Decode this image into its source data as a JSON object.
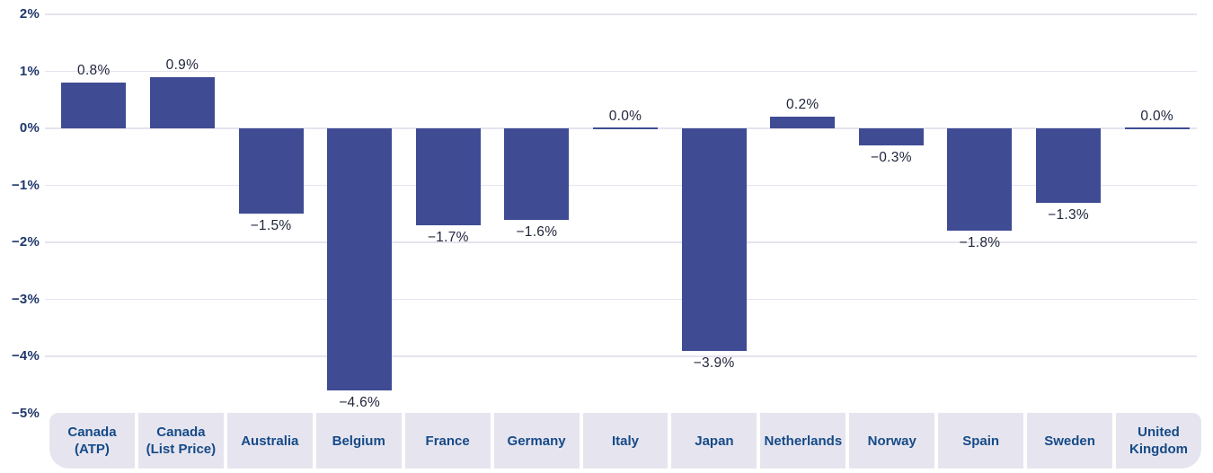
{
  "chart_data": {
    "type": "bar",
    "title": "",
    "xlabel": "",
    "ylabel": "",
    "categories": [
      "Canada (ATP)",
      "Canada (List Price)",
      "Australia",
      "Belgium",
      "France",
      "Germany",
      "Italy",
      "Japan",
      "Netherlands",
      "Norway",
      "Spain",
      "Sweden",
      "United Kingdom"
    ],
    "category_label_lines": [
      [
        "Canada",
        "(ATP)"
      ],
      [
        "Canada",
        "(List Price)"
      ],
      [
        "Australia"
      ],
      [
        "Belgium"
      ],
      [
        "France"
      ],
      [
        "Germany"
      ],
      [
        "Italy"
      ],
      [
        "Japan"
      ],
      [
        "Netherlands"
      ],
      [
        "Norway"
      ],
      [
        "Spain"
      ],
      [
        "Sweden"
      ],
      [
        "United",
        "Kingdom"
      ]
    ],
    "values": [
      0.8,
      0.9,
      -1.5,
      -4.6,
      -1.7,
      -1.6,
      0.0,
      -3.9,
      0.2,
      -0.3,
      -1.8,
      -1.3,
      0.0
    ],
    "value_labels": [
      "0.8%",
      "0.9%",
      "−1.5%",
      "−4.6%",
      "−1.7%",
      "−1.6%",
      "0.0%",
      "−3.9%",
      "0.2%",
      "−0.3%",
      "−1.8%",
      "−1.3%",
      "0.0%"
    ],
    "y_ticks": [
      2,
      1,
      0,
      -1,
      -2,
      -3,
      -4,
      -5
    ],
    "y_tick_labels": [
      "2%",
      "1%",
      "0%",
      "−1%",
      "−2%",
      "−3%",
      "−4%",
      "−5%"
    ],
    "ylim": [
      -5,
      2
    ],
    "grid": true,
    "legend": false,
    "colors": {
      "bar": "#3f4c94",
      "zero_bar_line": "#3f4c94",
      "grid": "#e5e3ef",
      "tick_label": "#20386b",
      "value_label": "#21263c",
      "category_label": "#164a87",
      "category_band_bg": "#e6e5ef",
      "background": "#ffffff"
    }
  }
}
